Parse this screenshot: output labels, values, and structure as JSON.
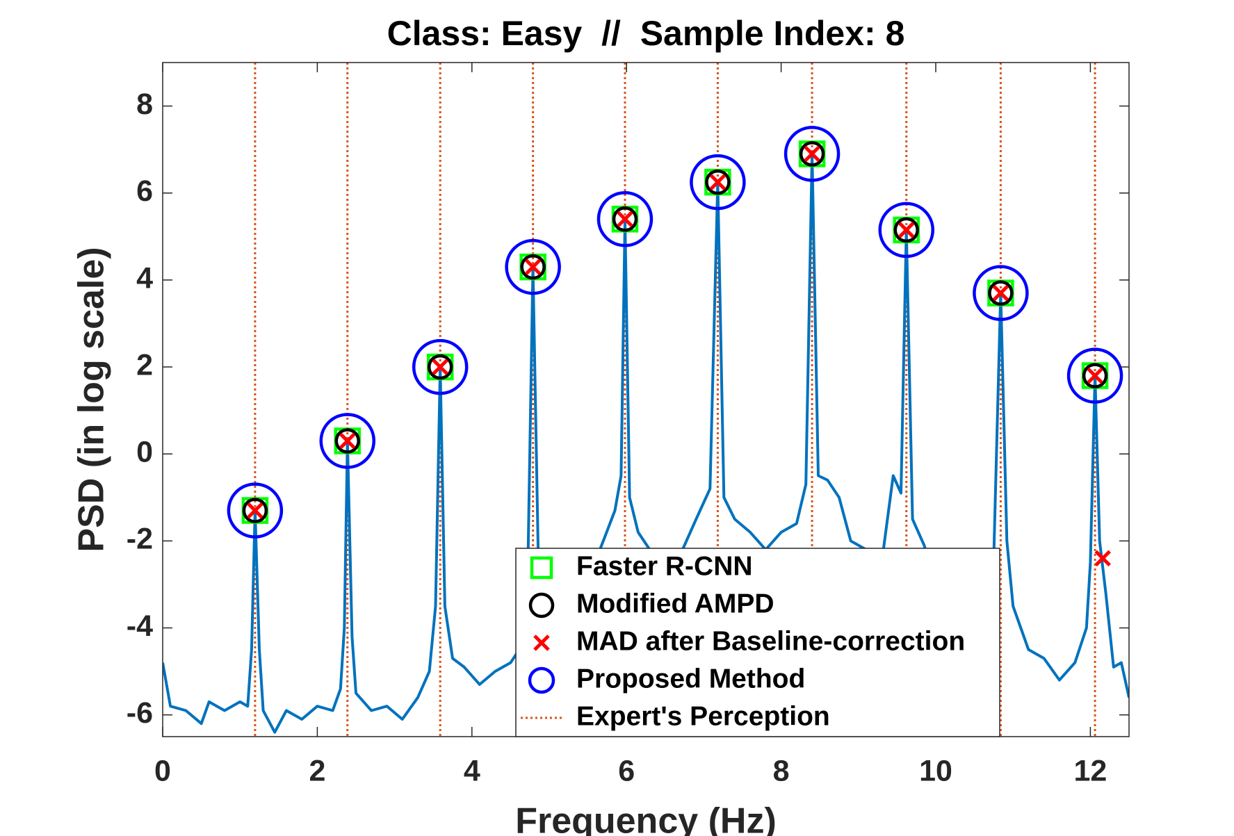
{
  "chart_data": {
    "type": "line",
    "title": "Class: Easy  //  Sample Index: 8",
    "x_label": "Frequency (Hz)",
    "y_label": "PSD (in log scale)",
    "xlim": [
      0,
      12.5
    ],
    "ylim": [
      -6.5,
      9
    ],
    "xticks": [
      0,
      2,
      4,
      6,
      8,
      10,
      12
    ],
    "yticks": [
      -6,
      -4,
      -2,
      0,
      2,
      4,
      6,
      8
    ],
    "grid": false,
    "legend": "lower right",
    "series": [
      {
        "color": "#0072bd",
        "marker": "none",
        "x": [
          0,
          0.1,
          0.3,
          0.5,
          0.6,
          0.8,
          1.0,
          1.1,
          1.15,
          1.195,
          1.25,
          1.3,
          1.45,
          1.6,
          1.8,
          2.0,
          2.2,
          2.3,
          2.35,
          2.39,
          2.45,
          2.5,
          2.7,
          2.9,
          3.1,
          3.3,
          3.45,
          3.53,
          3.59,
          3.65,
          3.75,
          3.9,
          4.1,
          4.3,
          4.5,
          4.65,
          4.72,
          4.79,
          4.86,
          4.95,
          5.2,
          5.5,
          5.7,
          5.85,
          5.93,
          5.98,
          6.04,
          6.15,
          6.3,
          6.5,
          6.7,
          6.9,
          7.08,
          7.18,
          7.26,
          7.4,
          7.6,
          7.8,
          8.0,
          8.2,
          8.32,
          8.4,
          8.48,
          8.6,
          8.75,
          8.9,
          9.1,
          9.3,
          9.45,
          9.55,
          9.62,
          9.7,
          9.85,
          10.0,
          10.3,
          10.6,
          10.75,
          10.84,
          10.92,
          11.0,
          11.2,
          11.4,
          11.6,
          11.8,
          11.95,
          12.0,
          12.06,
          12.12,
          12.2,
          12.3,
          12.4,
          12.5
        ],
        "values": [
          -4.8,
          -5.8,
          -5.9,
          -6.2,
          -5.7,
          -5.9,
          -5.7,
          -5.8,
          -4.5,
          -1.3,
          -4.5,
          -5.9,
          -6.4,
          -5.9,
          -6.1,
          -5.8,
          -5.9,
          -5.4,
          -4.0,
          0.3,
          -4.2,
          -5.5,
          -5.9,
          -5.8,
          -6.1,
          -5.6,
          -5.0,
          -3.5,
          2.0,
          -3.5,
          -4.7,
          -4.9,
          -5.3,
          -5.0,
          -4.8,
          -4.4,
          -3.0,
          4.3,
          -2.5,
          -3.0,
          -3.2,
          -2.9,
          -2.0,
          -1.3,
          -0.5,
          5.4,
          -1.0,
          -1.8,
          -2.2,
          -2.8,
          -2.3,
          -1.5,
          -0.8,
          6.25,
          -1.0,
          -1.5,
          -1.8,
          -2.2,
          -1.8,
          -1.6,
          -0.7,
          6.9,
          -0.5,
          -0.6,
          -1.0,
          -2.0,
          -2.2,
          -2.5,
          -0.5,
          -0.9,
          5.15,
          -1.5,
          -2.1,
          -3.0,
          -3.5,
          -3.2,
          -2.4,
          3.7,
          -2.0,
          -3.5,
          -4.5,
          -4.7,
          -5.2,
          -4.8,
          -4.0,
          -2.5,
          1.8,
          -2.0,
          -3.2,
          -4.9,
          -4.8,
          -5.6
        ]
      },
      {
        "name": "Faster R-CNN",
        "color": "#00ff00",
        "marker": "square",
        "x": [
          1.195,
          2.39,
          3.59,
          4.79,
          5.98,
          7.18,
          8.4,
          9.62,
          10.84,
          12.06
        ],
        "values": [
          -1.3,
          0.3,
          2.0,
          4.3,
          5.4,
          6.25,
          6.9,
          5.15,
          3.7,
          1.8
        ]
      },
      {
        "name": "Modified AMPD",
        "color": "#000000",
        "marker": "circle",
        "x": [
          1.195,
          2.39,
          3.59,
          4.79,
          5.98,
          7.18,
          8.4,
          9.62,
          10.84,
          12.06
        ],
        "values": [
          -1.3,
          0.3,
          2.0,
          4.3,
          5.4,
          6.25,
          6.9,
          5.15,
          3.7,
          1.8
        ]
      },
      {
        "name": "MAD after Baseline-correction",
        "color": "#ff0000",
        "marker": "x",
        "x": [
          1.195,
          2.39,
          3.59,
          4.79,
          5.98,
          7.18,
          8.4,
          9.62,
          10.84,
          12.06,
          12.16
        ],
        "values": [
          -1.3,
          0.3,
          2.0,
          4.3,
          5.4,
          6.25,
          6.9,
          5.15,
          3.7,
          1.8,
          -2.4
        ]
      },
      {
        "name": "Proposed Method",
        "color": "#0000ff",
        "marker": "circle-large",
        "x": [
          1.195,
          2.39,
          3.59,
          4.79,
          5.98,
          7.18,
          8.4,
          9.62,
          10.84,
          12.06
        ],
        "values": [
          -1.3,
          0.3,
          2.0,
          4.3,
          5.4,
          6.25,
          6.9,
          5.15,
          3.7,
          1.8
        ]
      },
      {
        "name": "Expert's Perception",
        "color": "#d95319",
        "marker": "vline",
        "x": [
          1.195,
          2.39,
          3.59,
          4.79,
          5.98,
          7.18,
          8.4,
          9.62,
          10.84,
          12.06
        ]
      }
    ]
  }
}
